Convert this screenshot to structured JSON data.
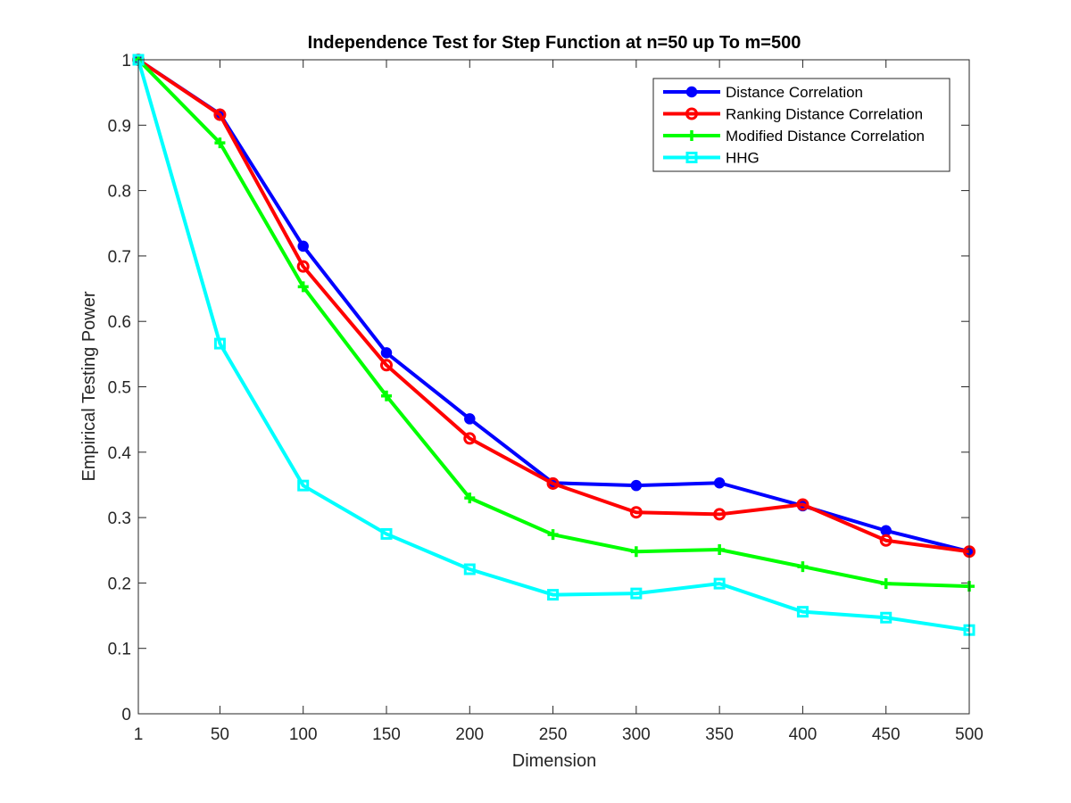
{
  "chart_data": {
    "type": "line",
    "title": "Independence Test for Step Function at n=50 up To m=500",
    "xlabel": "Dimension",
    "ylabel": "Empirical Testing Power",
    "xlim": [
      1,
      500
    ],
    "ylim": [
      0,
      1
    ],
    "x": [
      1,
      50,
      100,
      150,
      200,
      250,
      300,
      350,
      400,
      450,
      500
    ],
    "x_ticks": [
      "1",
      "50",
      "100",
      "150",
      "200",
      "250",
      "300",
      "350",
      "400",
      "450",
      "500"
    ],
    "y_ticks": [
      "0",
      "0.1",
      "0.2",
      "0.3",
      "0.4",
      "0.5",
      "0.6",
      "0.7",
      "0.8",
      "0.9",
      "1"
    ],
    "grid": false,
    "legend_position": "top-right",
    "series": [
      {
        "name": "Distance Correlation",
        "color": "#0000ff",
        "marker": "filled-circle",
        "values": [
          1.0,
          0.917,
          0.715,
          0.552,
          0.451,
          0.353,
          0.349,
          0.353,
          0.318,
          0.28,
          0.248
        ]
      },
      {
        "name": "Ranking Distance Correlation",
        "color": "#ff0000",
        "marker": "open-circle",
        "values": [
          1.0,
          0.916,
          0.684,
          0.533,
          0.421,
          0.352,
          0.308,
          0.305,
          0.32,
          0.265,
          0.248
        ]
      },
      {
        "name": "Modified Distance Correlation",
        "color": "#00ff00",
        "marker": "plus",
        "values": [
          1.0,
          0.873,
          0.653,
          0.486,
          0.33,
          0.274,
          0.248,
          0.251,
          0.225,
          0.199,
          0.195
        ]
      },
      {
        "name": "HHG",
        "color": "#00ffff",
        "marker": "open-square",
        "values": [
          1.0,
          0.566,
          0.349,
          0.275,
          0.221,
          0.182,
          0.184,
          0.199,
          0.156,
          0.147,
          0.128
        ]
      }
    ]
  }
}
